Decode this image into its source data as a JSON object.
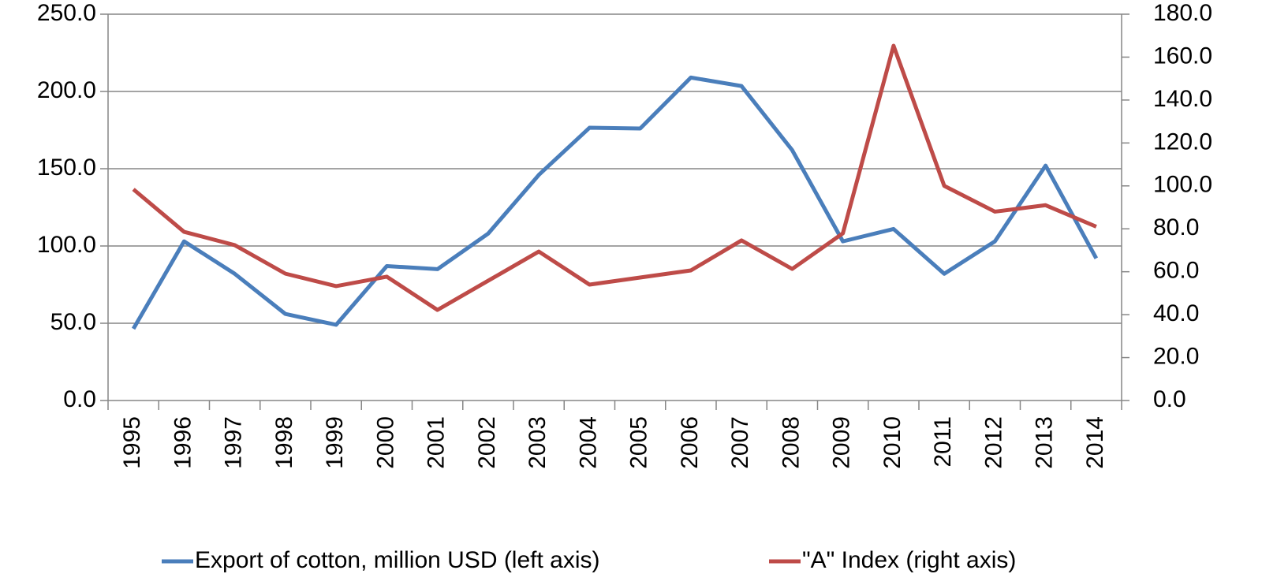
{
  "chart_data": {
    "type": "line",
    "categories": [
      "1995",
      "1996",
      "1997",
      "1998",
      "1999",
      "2000",
      "2001",
      "2002",
      "2003",
      "2004",
      "2005",
      "2006",
      "2007",
      "2008",
      "2009",
      "2010",
      "2011",
      "2012",
      "2013",
      "2014"
    ],
    "series": [
      {
        "name": "Export of cotton, million USD (left axis)",
        "color": "#4a7ebb",
        "values": [
          46.4,
          103,
          82,
          56,
          49,
          87,
          85,
          108,
          146,
          176.5,
          176,
          209,
          203.5,
          162,
          103,
          111,
          82,
          103,
          152,
          92
        ]
      },
      {
        "name": "\"A\" Index (right axis)",
        "color": "#be4b48",
        "axis": "y2",
        "values": [
          98.4,
          78.6,
          72.4,
          59.1,
          53.3,
          57.7,
          42.2,
          55.8,
          69.4,
          54,
          57.3,
          60.6,
          74.6,
          61.3,
          77.9,
          165.3,
          100,
          88,
          91,
          81
        ]
      }
    ],
    "ylim": [
      0,
      250
    ],
    "yticks": [
      {
        "value": 0,
        "label": "0.0"
      },
      {
        "value": 50,
        "label": "50.0"
      },
      {
        "value": 100,
        "label": "100.0"
      },
      {
        "value": 150,
        "label": "150.0"
      },
      {
        "value": 200,
        "label": "200.0"
      },
      {
        "value": 250,
        "label": "250.0"
      }
    ],
    "y2lim": [
      0,
      180
    ],
    "y2ticks": [
      {
        "value": 0,
        "label": "0.0"
      },
      {
        "value": 20,
        "label": "20.0"
      },
      {
        "value": 40,
        "label": "40.0"
      },
      {
        "value": 60,
        "label": "60.0"
      },
      {
        "value": 80,
        "label": "80.0"
      },
      {
        "value": 100,
        "label": "100.0"
      },
      {
        "value": 120,
        "label": "120.0"
      },
      {
        "value": 140,
        "label": "140.0"
      },
      {
        "value": 160,
        "label": "160.0"
      },
      {
        "value": 180,
        "label": "180.0"
      }
    ],
    "grid": true,
    "legend": "bottom"
  }
}
